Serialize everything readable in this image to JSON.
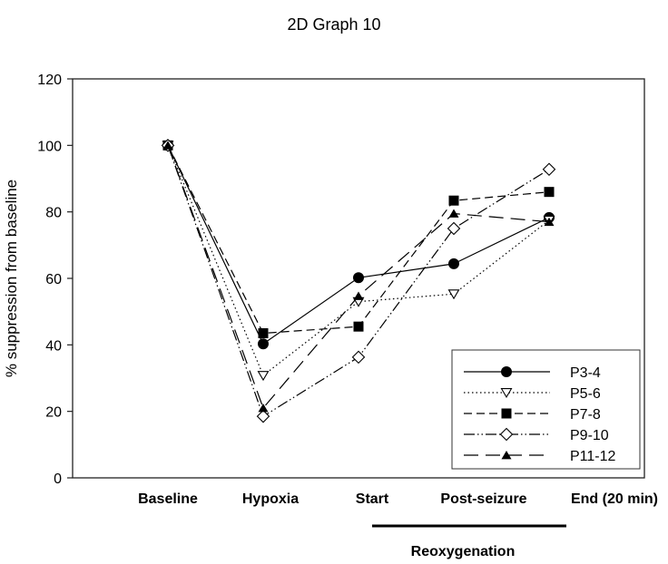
{
  "chart_data": {
    "type": "line",
    "title": "2D Graph 10",
    "xlabel": "",
    "ylabel": "% suppression from baseline",
    "ylim": [
      0,
      120
    ],
    "yticks": [
      0,
      20,
      40,
      60,
      80,
      100,
      120
    ],
    "categories": [
      "Baseline",
      "Hypoxia",
      "Start",
      "Post-seizure",
      "End (20 min)"
    ],
    "group_label": "Reoxygenation",
    "grid": false,
    "legend_position": "bottom-right",
    "series": [
      {
        "name": "P3-4",
        "marker": "filled-circle",
        "line": "solid",
        "values": [
          100,
          40.3,
          60.2,
          64.4,
          78.3
        ]
      },
      {
        "name": "P5-6",
        "marker": "open-triangle-down",
        "line": "dotted",
        "values": [
          100,
          30.8,
          53.0,
          55.3,
          77.5
        ]
      },
      {
        "name": "P7-8",
        "marker": "filled-square",
        "line": "dashed",
        "values": [
          100,
          43.5,
          45.5,
          83.4,
          86.0
        ]
      },
      {
        "name": "P9-10",
        "marker": "open-diamond",
        "line": "dash-dot-dot",
        "values": [
          100,
          18.5,
          36.3,
          75.0,
          92.8
        ]
      },
      {
        "name": "P11-12",
        "marker": "filled-triangle-up",
        "line": "long-dash",
        "values": [
          100,
          21.0,
          54.7,
          79.5,
          77.0
        ]
      }
    ]
  }
}
